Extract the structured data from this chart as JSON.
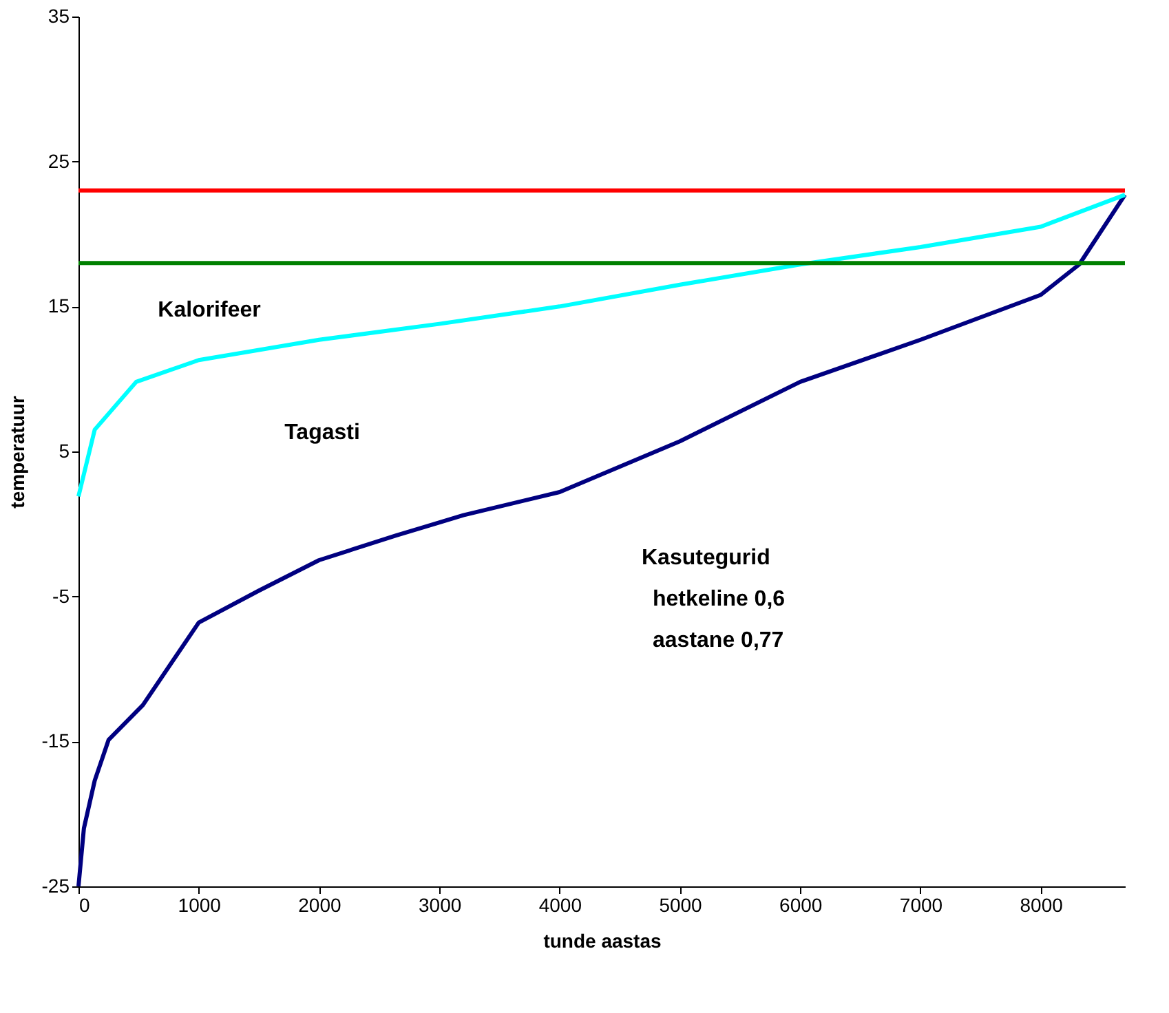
{
  "chart_data": {
    "type": "line",
    "xlabel": "tunde aastas",
    "ylabel": "temperatuur",
    "xlim": [
      0,
      8700
    ],
    "xticks": [
      0,
      1000,
      2000,
      3000,
      4000,
      5000,
      6000,
      7000,
      8000
    ],
    "ylim": [
      -25,
      35
    ],
    "yticks": [
      -25,
      -15,
      -5,
      5,
      15,
      25,
      35
    ],
    "grid": false,
    "marker": "none",
    "line_style": "solid",
    "series": [
      {
        "color": "#000080",
        "x": [
          0,
          45,
          135,
          250,
          535,
          1000,
          1500,
          2000,
          2640,
          3200,
          4000,
          5000,
          6000,
          7000,
          8000,
          8320,
          8700
        ],
        "values": [
          -25,
          -21,
          -17.7,
          -14.9,
          -12.5,
          -6.8,
          -4.6,
          -2.5,
          -0.8,
          0.6,
          2.2,
          5.7,
          9.8,
          12.7,
          15.8,
          17.9,
          22.7
        ]
      },
      {
        "color": "#00ffff",
        "x": [
          0,
          135,
          480,
          1000,
          2000,
          3000,
          4000,
          5000,
          6000,
          7000,
          8000,
          8700
        ],
        "values": [
          1.9,
          6.5,
          9.8,
          11.3,
          12.7,
          13.8,
          15,
          16.5,
          17.9,
          19.1,
          20.5,
          22.7
        ]
      }
    ],
    "ref_lines": [
      {
        "axis": "y",
        "value": 23,
        "color": "#ff0000"
      },
      {
        "axis": "y",
        "value": 18,
        "color": "#008000"
      }
    ],
    "annotations": [
      "Kalorifeer",
      "Tagasti",
      "Kasutegurid",
      "hetkeline   0,6",
      "aastane     0,77"
    ]
  }
}
